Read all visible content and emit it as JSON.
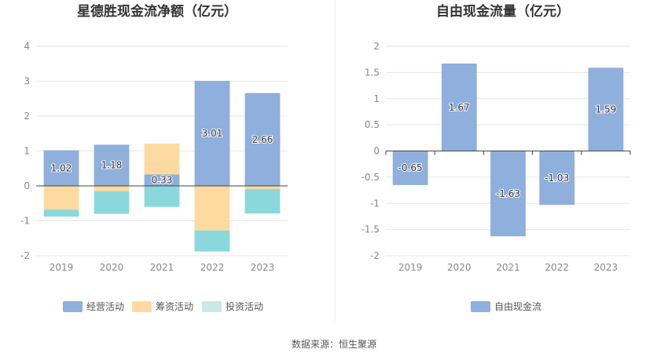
{
  "colors": {
    "operating": "#8fafdc",
    "financing": "#fddba0",
    "investing": "#8ad8dc",
    "investing_legend": "#c8e8ea",
    "fcf": "#8fafdc",
    "grid": "#e6e6e6",
    "axis": "#444444"
  },
  "source_label": "数据来源：",
  "source_name": "恒生聚源",
  "chart_data": [
    {
      "type": "bar",
      "stacked": true,
      "title": "星德胜现金流净额（亿元）",
      "categories": [
        "2019",
        "2020",
        "2021",
        "2022",
        "2023"
      ],
      "ylim": [
        -2,
        4
      ],
      "yticks": [
        -2,
        -1,
        0,
        1,
        2,
        3,
        4
      ],
      "series": [
        {
          "name": "经营活动",
          "values": [
            1.02,
            1.18,
            0.33,
            3.01,
            2.66
          ],
          "labels": [
            "1.02",
            "1.18",
            "0.33",
            "3.01",
            "2.66"
          ]
        },
        {
          "name": "筹资活动",
          "values": [
            -0.68,
            -0.15,
            0.88,
            -1.28,
            -0.09
          ]
        },
        {
          "name": "投资活动",
          "values": [
            -0.2,
            -0.65,
            -0.6,
            -0.6,
            -0.7
          ]
        }
      ],
      "legend": "bottom"
    },
    {
      "type": "bar",
      "title": "自由现金流量（亿元）",
      "categories": [
        "2019",
        "2020",
        "2021",
        "2022",
        "2023"
      ],
      "ylim": [
        -2,
        2
      ],
      "yticks": [
        -2,
        -1.5,
        -1,
        -0.5,
        0,
        0.5,
        1,
        1.5,
        2
      ],
      "series": [
        {
          "name": "自由现金流",
          "values": [
            -0.65,
            1.67,
            -1.63,
            -1.03,
            1.59
          ],
          "labels": [
            "-0.65",
            "1.67",
            "-1.63",
            "-1.03",
            "1.59"
          ]
        }
      ],
      "legend": "bottom"
    }
  ]
}
